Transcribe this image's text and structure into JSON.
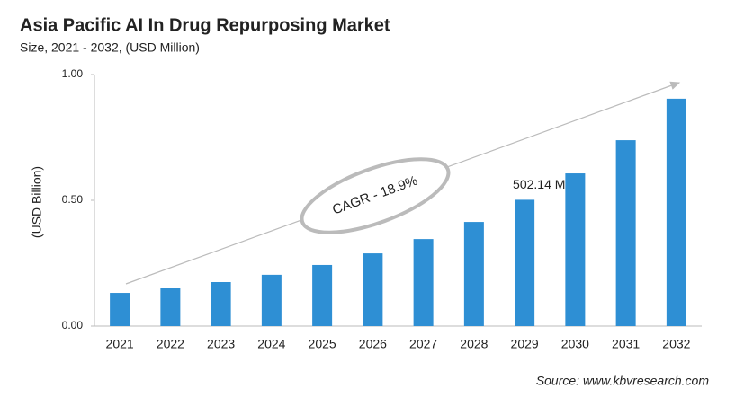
{
  "chart_data": {
    "type": "bar",
    "title": "Asia Pacific AI In Drug Repurposing Market",
    "subtitle": "Size, 2021 - 2032, (USD Million)",
    "y_label": "(USD Billion)",
    "annotation": "CAGR - 18.9%",
    "source": "Source: www.kbvresearch.com",
    "categories": [
      "2021",
      "2022",
      "2023",
      "2024",
      "2025",
      "2026",
      "2027",
      "2028",
      "2029",
      "2030",
      "2031",
      "2032"
    ],
    "values": [
      0.132,
      0.15,
      0.175,
      0.204,
      0.243,
      0.289,
      0.346,
      0.414,
      0.50214,
      0.607,
      0.739,
      0.904
    ],
    "value_labels": [
      null,
      null,
      null,
      null,
      null,
      null,
      null,
      null,
      "502.14 Mn",
      null,
      null,
      null
    ],
    "color": "#2e8fd4",
    "ylim": [
      0,
      1
    ],
    "yticks": [
      {
        "value": 0,
        "label": "0.00"
      },
      {
        "value": 0.5,
        "label": "0.50"
      },
      {
        "value": 1,
        "label": "1.00"
      }
    ],
    "grid": false
  }
}
